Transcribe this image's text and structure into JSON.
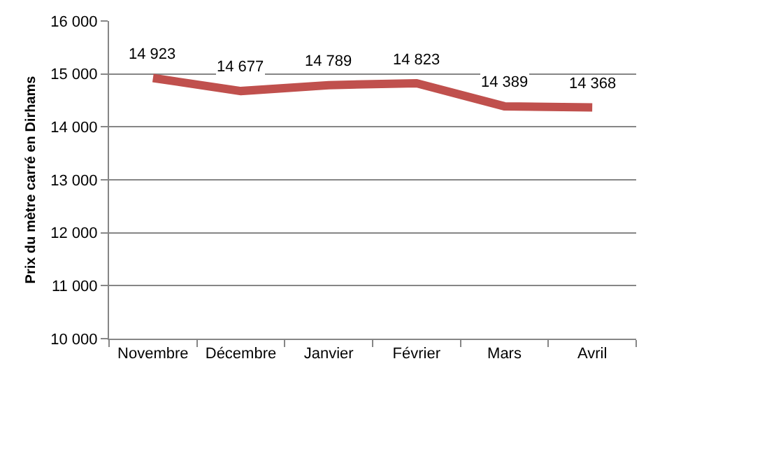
{
  "chart_data": {
    "type": "line",
    "ylabel": "Prix du mètre carré en Dirhams",
    "categories": [
      "Novembre",
      "Décembre",
      "Janvier",
      "Février",
      "Mars",
      "Avril"
    ],
    "series": [
      {
        "color": "#c0504d",
        "values": [
          14923,
          14677,
          14789,
          14823,
          14389,
          14368
        ],
        "value_labels": [
          "14 923",
          "14 677",
          "14 789",
          "14 823",
          "14 389",
          "14 368"
        ]
      }
    ],
    "ylim": [
      10000,
      16000
    ],
    "yticks": [
      {
        "value": 10000,
        "label": "10 000"
      },
      {
        "value": 11000,
        "label": "11 000"
      },
      {
        "value": 12000,
        "label": "12 000"
      },
      {
        "value": 13000,
        "label": "13 000"
      },
      {
        "value": 14000,
        "label": "14 000"
      },
      {
        "value": 15000,
        "label": "15 000"
      },
      {
        "value": 16000,
        "label": "16 000"
      }
    ],
    "grid": "y",
    "marker": "none",
    "line_style": "solid"
  }
}
